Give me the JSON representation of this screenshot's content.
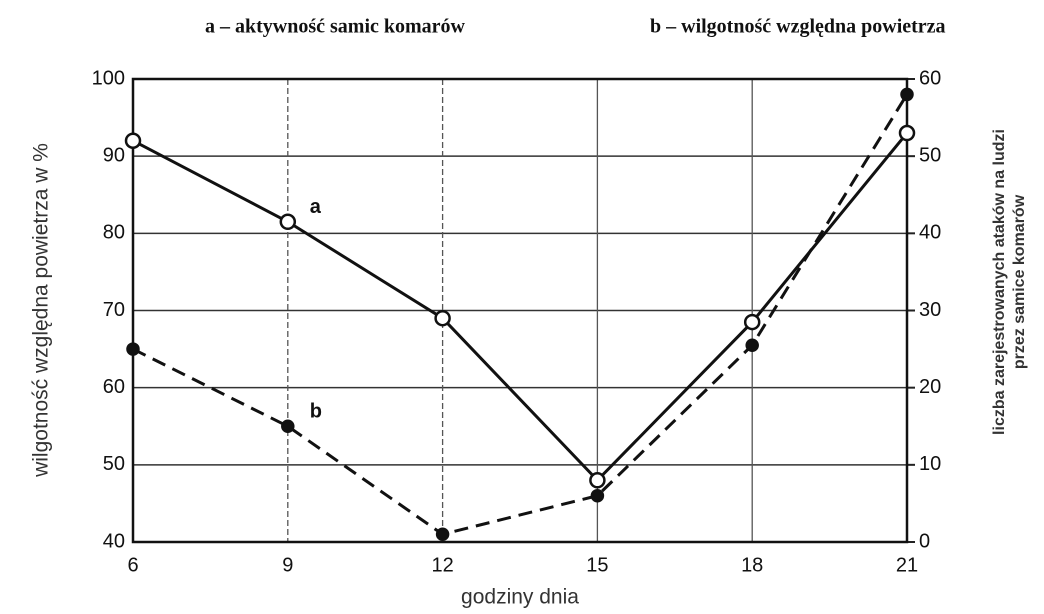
{
  "chart_data": {
    "type": "line",
    "xlabel": "godziny dnia",
    "ylabel": "wilgotność względna powietrza w %",
    "y2label": [
      "liczba zarejestrowanych ataków na ludzi",
      "przez samice komarów"
    ],
    "x": [
      6,
      9,
      12,
      15,
      18,
      21
    ],
    "xlim": [
      6,
      21
    ],
    "xticks": [
      6,
      9,
      12,
      15,
      18,
      21
    ],
    "ylim": [
      40,
      100
    ],
    "yticks": [
      40,
      50,
      60,
      70,
      80,
      90,
      100
    ],
    "y2lim": [
      0,
      60
    ],
    "y2ticks": [
      0,
      10,
      20,
      30,
      40,
      50,
      60
    ],
    "grid": true,
    "series": [
      {
        "name": "a – aktywność samic komarów",
        "label": "a",
        "color": "#111111",
        "axis": "y2",
        "style": "solid",
        "marker": "open",
        "values": [
          52,
          41.5,
          29,
          8,
          28.5,
          53
        ]
      },
      {
        "name": "b – wilgotność względna powietrza",
        "label": "b",
        "color": "#111111",
        "axis": "y",
        "style": "dashed",
        "marker": "filled",
        "values": [
          65,
          55,
          41,
          46,
          65.5,
          98
        ]
      }
    ]
  }
}
